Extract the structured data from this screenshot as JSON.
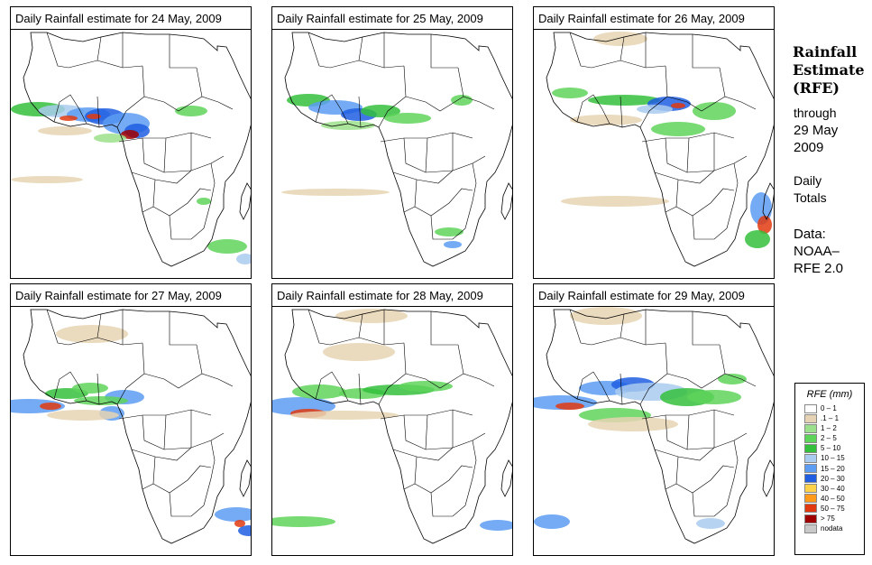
{
  "panels": [
    {
      "title": "Daily Rainfall estimate for  24 May, 2009",
      "date": "24 May, 2009"
    },
    {
      "title": "Daily Rainfall estimate for  25 May, 2009",
      "date": "25 May, 2009"
    },
    {
      "title": "Daily Rainfall estimate for  26 May, 2009",
      "date": "26 May, 2009"
    },
    {
      "title": "Daily Rainfall estimate for  27 May, 2009",
      "date": "27 May, 2009"
    },
    {
      "title": "Daily Rainfall estimate for  28 May, 2009",
      "date": "28 May, 2009"
    },
    {
      "title": "Daily Rainfall estimate for  29 May, 2009",
      "date": "29 May, 2009"
    }
  ],
  "sidebar": {
    "title_line1": "Rainfall",
    "title_line2": "Estimate",
    "title_line3": "(RFE)",
    "through_label": "through",
    "end_date_line1": "29 May",
    "end_date_line2": "2009",
    "totals_line1": "Daily",
    "totals_line2": "Totals",
    "data_label": "Data:",
    "source_line1": "NOAA–",
    "source_line2": "RFE 2.0"
  },
  "legend": {
    "title": "RFE (mm)",
    "items": [
      {
        "label": "0 – 1",
        "color": "#ffffff"
      },
      {
        "label": ".1 – 1",
        "color": "#e6d3b3"
      },
      {
        "label": "1 – 2",
        "color": "#9be08a"
      },
      {
        "label": "2 – 5",
        "color": "#5fd45a"
      },
      {
        "label": "5 – 10",
        "color": "#34bf3c"
      },
      {
        "label": "10 – 15",
        "color": "#a9cbef"
      },
      {
        "label": "15 – 20",
        "color": "#5c9cf2"
      },
      {
        "label": "20 – 30",
        "color": "#1f5ee0"
      },
      {
        "label": "30 – 40",
        "color": "#ffd24a"
      },
      {
        "label": "40 – 50",
        "color": "#ff9a1a"
      },
      {
        "label": "50 – 75",
        "color": "#e23a10"
      },
      {
        "label": "> 75",
        "color": "#a00000"
      },
      {
        "label": "nodata",
        "color": "#c8c8c8"
      }
    ]
  },
  "map_colors": {
    "land_outline": "#000000",
    "ocean": "#ffffff"
  }
}
